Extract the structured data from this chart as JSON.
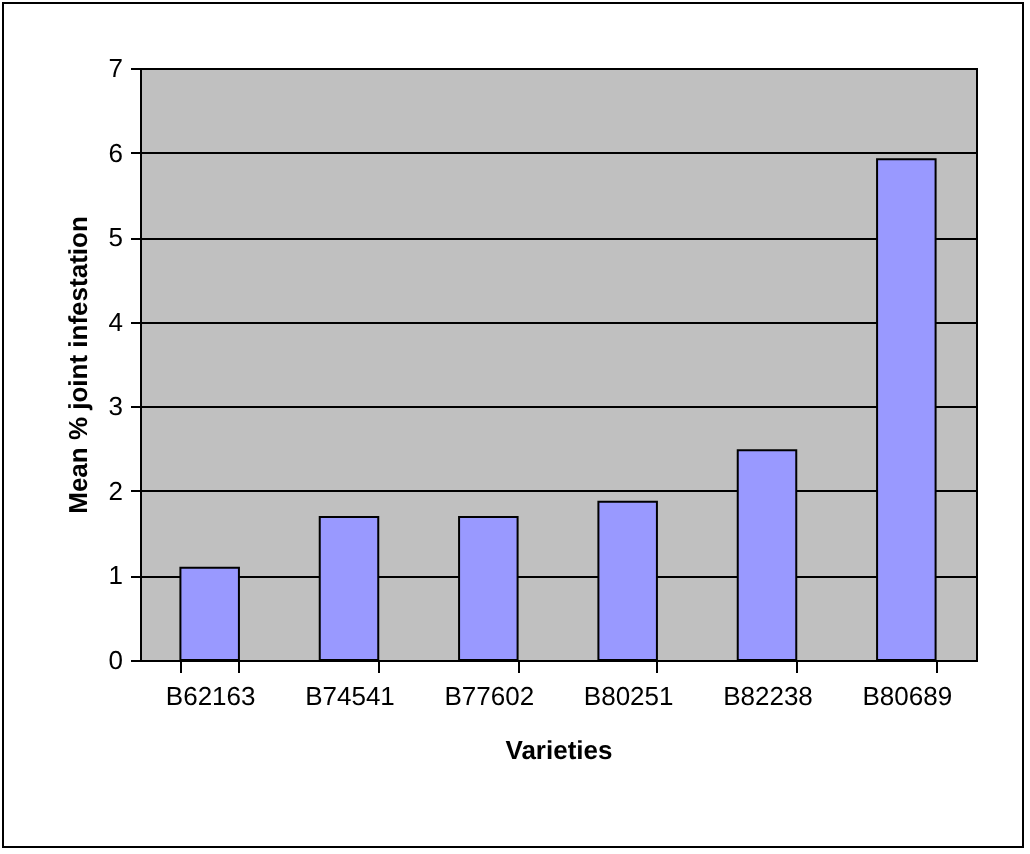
{
  "chart_data": {
    "type": "bar",
    "xlabel": "Varieties",
    "ylabel": "Mean % joint infestation",
    "categories": [
      "B62163",
      "B74541",
      "B77602",
      "B80251",
      "B82238",
      "B80689"
    ],
    "values": [
      1.09,
      1.69,
      1.69,
      1.87,
      2.48,
      5.92
    ],
    "color": "#9999ff",
    "ylim": [
      0,
      7
    ],
    "yticks": [
      0,
      1,
      2,
      3,
      4,
      5,
      6,
      7
    ],
    "grid": "y"
  }
}
